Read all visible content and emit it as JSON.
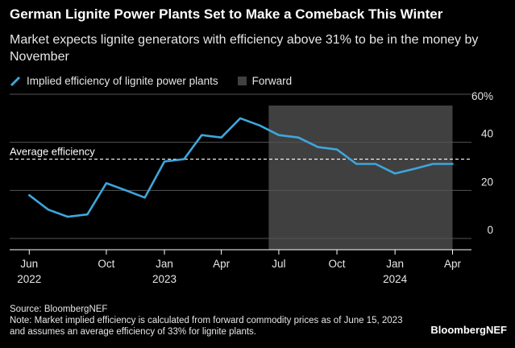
{
  "title": "German Lignite Power Plants Set to Make a Comeback This Winter",
  "subtitle": "Market expects lignite generators with efficiency above 31% to be in the money by November",
  "legend": {
    "series": "Implied efficiency of lignite power plants",
    "forward": "Forward"
  },
  "footer": {
    "source": "Source: BloombergNEF",
    "note": "Note: Market implied efficiency is calculated from forward commodity prices as of June 15, 2023 and assumes an average efficiency of 33% for lignite plants."
  },
  "brand": "BloombergNEF",
  "colors": {
    "line": "#3ea6dd",
    "forward_band": "#404040",
    "grid": "#555555",
    "background": "#000000"
  },
  "chart_data": {
    "type": "line",
    "series": [
      {
        "name": "Implied efficiency of lignite power plants",
        "x": [
          "2022-06-01",
          "2022-07-01",
          "2022-08-01",
          "2022-09-01",
          "2022-10-01",
          "2022-11-01",
          "2022-12-01",
          "2023-01-01",
          "2023-02-01",
          "2023-03-01",
          "2023-04-01",
          "2023-05-01",
          "2023-06-01",
          "2023-07-01",
          "2023-08-01",
          "2023-09-01",
          "2023-10-01",
          "2023-11-01",
          "2023-12-01",
          "2024-01-01",
          "2024-02-01",
          "2024-03-01",
          "2024-04-01"
        ],
        "values": [
          18,
          12,
          9,
          10,
          23,
          20,
          17,
          32,
          33,
          43,
          42,
          50,
          47,
          43,
          42,
          38,
          37,
          31,
          31,
          27,
          29,
          31,
          31
        ]
      }
    ],
    "reference_line": {
      "label": "Average efficiency",
      "value": 33
    },
    "forward_period": {
      "start": "2023-06-15",
      "end": "2024-04-01"
    },
    "x_ticks": [
      {
        "date": "2022-06-01",
        "label": "Jun",
        "year": "2022"
      },
      {
        "date": "2022-10-01",
        "label": "Oct",
        "year": ""
      },
      {
        "date": "2023-01-01",
        "label": "Jan",
        "year": "2023"
      },
      {
        "date": "2023-04-01",
        "label": "Apr",
        "year": ""
      },
      {
        "date": "2023-07-01",
        "label": "Jul",
        "year": ""
      },
      {
        "date": "2023-10-01",
        "label": "Oct",
        "year": ""
      },
      {
        "date": "2024-01-01",
        "label": "Jan",
        "year": "2024"
      },
      {
        "date": "2024-04-01",
        "label": "Apr",
        "year": ""
      }
    ],
    "y_ticks": [
      {
        "value": 0,
        "label": "0"
      },
      {
        "value": 20,
        "label": "20"
      },
      {
        "value": 40,
        "label": "40"
      },
      {
        "value": 60,
        "label": "60%"
      }
    ],
    "ylim": [
      0,
      60
    ],
    "xlim": [
      "2022-05-01",
      "2024-05-01"
    ],
    "grid": true,
    "y_axis_side": "right"
  }
}
